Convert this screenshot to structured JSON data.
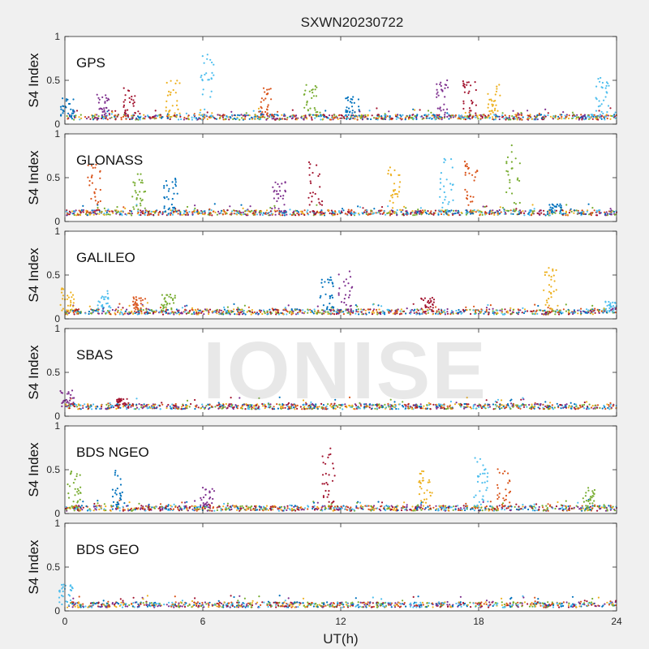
{
  "figure": {
    "title": "SXWN20230722",
    "xlabel": "UT(h)",
    "watermark": "IONISE"
  },
  "colors": {
    "series": [
      "#0072BD",
      "#D95319",
      "#EDB120",
      "#7E2F8E",
      "#77AC30",
      "#4DBEEE",
      "#A2142F"
    ],
    "panel_bg": "#ffffff",
    "figure_bg": "#f0f0f0"
  },
  "chart_data": [
    {
      "type": "scatter",
      "panel_label": "GPS",
      "ylabel": "S4 Index",
      "xlim": [
        0,
        24
      ],
      "ylim": [
        0,
        1
      ],
      "xticks": [
        0,
        6,
        12,
        18,
        24
      ],
      "yticks": [
        0,
        0.5,
        1
      ],
      "baseline": 0.08,
      "spikes": [
        [
          0.1,
          0.3
        ],
        [
          1.7,
          0.35
        ],
        [
          2.8,
          0.42
        ],
        [
          4.7,
          0.5
        ],
        [
          6.2,
          0.8
        ],
        [
          8.7,
          0.42
        ],
        [
          10.7,
          0.45
        ],
        [
          12.5,
          0.32
        ],
        [
          16.4,
          0.5
        ],
        [
          17.6,
          0.5
        ],
        [
          18.7,
          0.45
        ],
        [
          23.4,
          0.55
        ]
      ]
    },
    {
      "type": "scatter",
      "panel_label": "GLONASS",
      "ylabel": "S4 Index",
      "xlim": [
        0,
        24
      ],
      "ylim": [
        0,
        1
      ],
      "xticks": [
        0,
        6,
        12,
        18,
        24
      ],
      "yticks": [
        0,
        0.5,
        1
      ],
      "baseline": 0.1,
      "spikes": [
        [
          1.3,
          0.65
        ],
        [
          3.2,
          0.55
        ],
        [
          4.6,
          0.5
        ],
        [
          9.3,
          0.45
        ],
        [
          10.9,
          0.7
        ],
        [
          14.3,
          0.62
        ],
        [
          16.6,
          0.75
        ],
        [
          17.7,
          0.7
        ],
        [
          19.5,
          0.88
        ],
        [
          21.3,
          0.2
        ]
      ]
    },
    {
      "type": "scatter",
      "panel_label": "GALILEO",
      "ylabel": "S4 Index",
      "xlim": [
        0,
        24
      ],
      "ylim": [
        0,
        1
      ],
      "xticks": [
        0,
        6,
        12,
        18,
        24
      ],
      "yticks": [
        0,
        0.5,
        1
      ],
      "baseline": 0.08,
      "spikes": [
        [
          0.1,
          0.35
        ],
        [
          1.7,
          0.32
        ],
        [
          3.2,
          0.25
        ],
        [
          4.5,
          0.28
        ],
        [
          11.4,
          0.48
        ],
        [
          12.2,
          0.58
        ],
        [
          15.8,
          0.25
        ],
        [
          21.1,
          0.6
        ],
        [
          23.7,
          0.2
        ]
      ]
    },
    {
      "type": "scatter",
      "panel_label": "SBAS",
      "ylabel": "S4 Index",
      "xlim": [
        0,
        24
      ],
      "ylim": [
        0,
        1
      ],
      "xticks": [
        0,
        6,
        12,
        18,
        24
      ],
      "yticks": [
        0,
        0.5,
        1
      ],
      "baseline": 0.11,
      "spikes": [
        [
          0.1,
          0.3
        ],
        [
          2.5,
          0.2
        ]
      ]
    },
    {
      "type": "scatter",
      "panel_label": "BDS NGEO",
      "ylabel": "S4 Index",
      "xlim": [
        0,
        24
      ],
      "ylim": [
        0,
        1
      ],
      "xticks": [
        0,
        6,
        12,
        18,
        24
      ],
      "yticks": [
        0,
        0.5,
        1
      ],
      "baseline": 0.06,
      "spikes": [
        [
          0.4,
          0.5
        ],
        [
          2.3,
          0.5
        ],
        [
          6.2,
          0.3
        ],
        [
          11.5,
          0.75
        ],
        [
          15.7,
          0.5
        ],
        [
          18.1,
          0.65
        ],
        [
          19.1,
          0.55
        ],
        [
          22.8,
          0.3
        ]
      ]
    },
    {
      "type": "scatter",
      "panel_label": "BDS GEO",
      "ylabel": "S4 Index",
      "xlim": [
        0,
        24
      ],
      "ylim": [
        0,
        1
      ],
      "xticks": [
        0,
        6,
        12,
        18,
        24
      ],
      "yticks": [
        0,
        0.5,
        1
      ],
      "baseline": 0.07,
      "spikes": [
        [
          0.05,
          0.3
        ]
      ]
    }
  ]
}
